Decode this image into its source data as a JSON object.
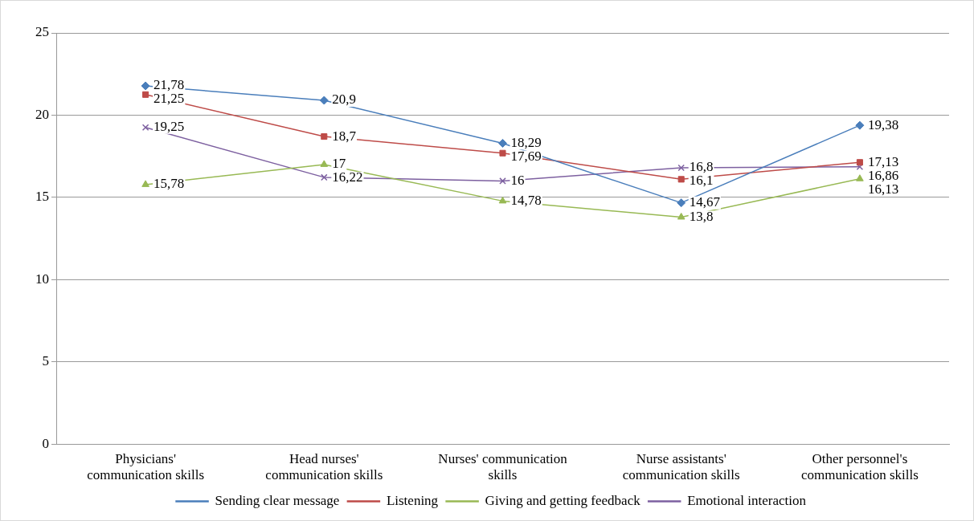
{
  "chart_data": {
    "type": "line",
    "categories": [
      "Physicians' communication skills",
      "Head nurses' communication skills",
      "Nurses' communication skills",
      "Nurse assistants' communication skills",
      "Other personnel's communication skills"
    ],
    "series": [
      {
        "name": "Sending clear message",
        "color": "#4a7ebb",
        "marker": "diamond",
        "values": [
          21.78,
          20.9,
          18.29,
          14.67,
          19.38
        ],
        "value_labels": [
          "21,78",
          "20,9",
          "18,29",
          "14,67",
          "19,38"
        ]
      },
      {
        "name": "Listening",
        "color": "#be4b48",
        "marker": "square",
        "values": [
          21.25,
          18.7,
          17.69,
          16.1,
          17.13
        ],
        "value_labels": [
          "21,25",
          "18,7",
          "17,69",
          "16,1",
          "17,13"
        ]
      },
      {
        "name": "Giving and getting feedback",
        "color": "#98b954",
        "marker": "triangle",
        "values": [
          15.78,
          17,
          14.78,
          13.8,
          16.13
        ],
        "value_labels": [
          "15,78",
          "17",
          "14,78",
          "13,8",
          "16,13"
        ]
      },
      {
        "name": "Emotional interaction",
        "color": "#7d60a0",
        "marker": "cross",
        "values": [
          19.25,
          16.22,
          16,
          16.8,
          16.86
        ],
        "value_labels": [
          "19,25",
          "16,22",
          "16",
          "16,8",
          "16,86"
        ]
      }
    ],
    "ylim": [
      0,
      25
    ],
    "yticks": [
      0,
      5,
      10,
      15,
      20,
      25
    ],
    "grid": "y",
    "legend": "bottom",
    "line_style": "solid"
  }
}
